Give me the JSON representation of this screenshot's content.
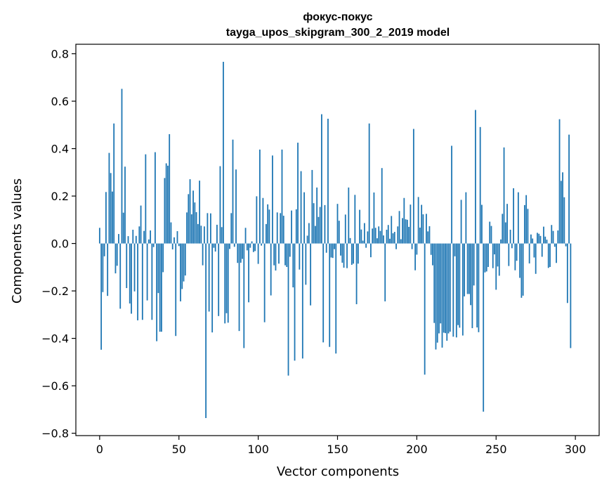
{
  "chart_data": {
    "type": "bar",
    "title": "фокус-покус",
    "subtitle": "tayga_upos_skipgram_300_2_2019 model",
    "xlabel": "Vector components",
    "ylabel": "Components values",
    "xlim": [
      -15,
      315
    ],
    "ylim": [
      -0.81,
      0.84
    ],
    "xticks": [
      0,
      50,
      100,
      150,
      200,
      250,
      300
    ],
    "xtick_labels": [
      "0",
      "50",
      "100",
      "150",
      "200",
      "250",
      "300"
    ],
    "yticks": [
      -0.8,
      -0.6,
      -0.4,
      -0.2,
      0.0,
      0.2,
      0.4,
      0.6,
      0.8
    ],
    "ytick_labels": [
      "−0.8",
      "−0.6",
      "−0.4",
      "−0.2",
      "0.0",
      "0.2",
      "0.4",
      "0.6",
      "0.8"
    ],
    "grid": false,
    "bar_color": "#1f77b4",
    "values": [
      0.066,
      -0.448,
      -0.205,
      -0.054,
      0.217,
      -0.221,
      0.382,
      0.297,
      0.219,
      0.506,
      -0.126,
      -0.094,
      0.04,
      -0.275,
      0.652,
      0.13,
      0.324,
      -0.188,
      0.031,
      -0.253,
      -0.296,
      0.058,
      -0.202,
      0.032,
      -0.324,
      0.072,
      0.16,
      -0.322,
      0.053,
      0.376,
      -0.24,
      0.017,
      0.055,
      -0.322,
      -0.015,
      0.385,
      -0.412,
      -0.209,
      -0.372,
      -0.372,
      -0.121,
      0.276,
      0.338,
      0.328,
      0.461,
      0.089,
      -0.025,
      0.026,
      -0.39,
      0.052,
      -0.011,
      -0.244,
      -0.192,
      -0.16,
      -0.135,
      0.131,
      0.208,
      0.271,
      0.123,
      0.223,
      0.173,
      0.132,
      0.082,
      0.265,
      0.075,
      -0.092,
      0.072,
      -0.736,
      0.128,
      -0.287,
      0.127,
      -0.375,
      -0.018,
      -0.034,
      0.079,
      -0.306,
      0.326,
      0.069,
      0.766,
      -0.337,
      -0.294,
      -0.334,
      -0.023,
      0.128,
      0.438,
      -0.014,
      0.312,
      -0.082,
      -0.369,
      -0.081,
      -0.065,
      -0.441,
      0.066,
      -0.029,
      -0.248,
      -0.018,
      0.009,
      -0.036,
      -0.032,
      0.199,
      -0.086,
      0.396,
      -0.009,
      0.192,
      -0.332,
      0.082,
      0.165,
      0.143,
      -0.219,
      0.371,
      -0.092,
      -0.114,
      0.131,
      -0.085,
      0.128,
      0.396,
      0.117,
      -0.092,
      -0.099,
      -0.557,
      -0.056,
      0.139,
      -0.185,
      -0.494,
      0.144,
      0.425,
      -0.11,
      0.305,
      -0.485,
      0.216,
      -0.174,
      0.033,
      0.086,
      -0.261,
      0.31,
      0.17,
      0.074,
      0.236,
      0.112,
      0.154,
      0.545,
      -0.417,
      0.162,
      -0.039,
      0.526,
      -0.436,
      -0.059,
      -0.061,
      -0.024,
      -0.464,
      0.167,
      0.096,
      -0.051,
      -0.081,
      -0.102,
      0.122,
      -0.104,
      0.236,
      0.023,
      -0.09,
      -0.085,
      0.205,
      -0.256,
      -0.085,
      0.142,
      0.059,
      0.012,
      0.086,
      -0.018,
      0.051,
      0.506,
      -0.058,
      0.063,
      0.215,
      0.066,
      0.022,
      0.072,
      0.053,
      0.318,
      0.034,
      -0.244,
      0.058,
      0.078,
      0.02,
      0.116,
      0.043,
      0.049,
      -0.024,
      0.072,
      0.137,
      0.018,
      0.107,
      0.192,
      0.102,
      0.1,
      0.07,
      0.164,
      -0.024,
      0.483,
      -0.113,
      -0.047,
      0.196,
      0.067,
      0.163,
      0.123,
      -0.553,
      0.125,
      0.051,
      0.073,
      -0.048,
      -0.092,
      -0.335,
      -0.447,
      -0.418,
      -0.379,
      -0.337,
      -0.439,
      -0.376,
      -0.378,
      -0.41,
      -0.379,
      -0.372,
      0.412,
      -0.393,
      -0.054,
      -0.396,
      -0.344,
      -0.355,
      0.184,
      -0.388,
      -0.223,
      0.216,
      -0.213,
      -0.213,
      -0.26,
      -0.357,
      -0.177,
      0.563,
      -0.354,
      -0.374,
      0.491,
      0.163,
      -0.709,
      -0.122,
      -0.118,
      -0.099,
      0.092,
      0.074,
      -0.104,
      -0.046,
      -0.195,
      -0.097,
      -0.136,
      0.017,
      0.125,
      0.405,
      0.089,
      0.167,
      -0.095,
      0.058,
      -0.02,
      0.233,
      -0.113,
      -0.073,
      0.216,
      -0.145,
      -0.229,
      -0.22,
      0.162,
      0.204,
      0.146,
      -0.084,
      0.038,
      0.021,
      -0.059,
      -0.128,
      0.045,
      0.041,
      0.032,
      -0.056,
      0.071,
      0.029,
      0.016,
      -0.103,
      -0.099,
      0.078,
      0.053,
      -0.014,
      -0.082,
      0.055,
      0.524,
      0.264,
      0.3,
      0.195,
      -0.012,
      -0.251,
      0.459,
      -0.441
    ]
  }
}
